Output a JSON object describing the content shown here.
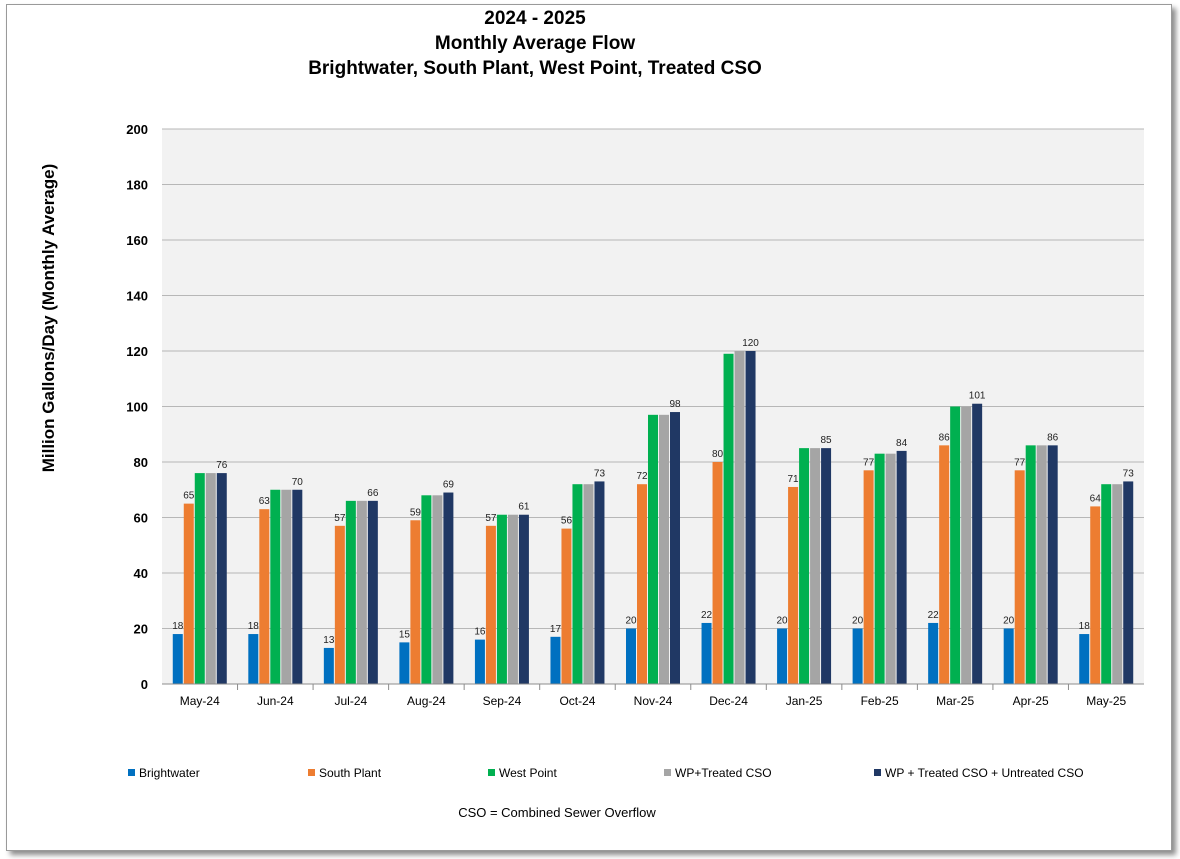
{
  "title": {
    "line1": "2024 - 2025",
    "line2": "Monthly Average Flow",
    "line3": "Brightwater, South Plant, West Point, Treated CSO"
  },
  "chart_data": {
    "type": "bar",
    "ylabel": "Million Gallons/Day (Monthly Average)",
    "xlabel": "",
    "ylim": [
      0,
      200
    ],
    "yticks": [
      0,
      20,
      40,
      60,
      80,
      100,
      120,
      140,
      160,
      180,
      200
    ],
    "grid": true,
    "legend_position": "bottom",
    "plot_background": "#f2f2f2",
    "categories": [
      "May-24",
      "Jun-24",
      "Jul-24",
      "Aug-24",
      "Sep-24",
      "Oct-24",
      "Nov-24",
      "Dec-24",
      "Jan-25",
      "Feb-25",
      "Mar-25",
      "Apr-25",
      "May-25"
    ],
    "series": [
      {
        "name": "Brightwater",
        "color": "#0070c0",
        "labeled": true,
        "values": [
          18,
          18,
          13,
          15,
          16,
          17,
          20,
          22,
          20,
          20,
          22,
          20,
          18
        ]
      },
      {
        "name": "South Plant",
        "color": "#ed7d31",
        "labeled": true,
        "values": [
          65,
          63,
          57,
          59,
          57,
          56,
          72,
          80,
          71,
          77,
          86,
          77,
          64
        ]
      },
      {
        "name": "West Point",
        "color": "#00b050",
        "labeled": false,
        "values": [
          76,
          70,
          66,
          68,
          61,
          72,
          97,
          119,
          85,
          83,
          100,
          86,
          72
        ]
      },
      {
        "name": "WP+Treated CSO",
        "color": "#a5a5a5",
        "labeled": false,
        "values": [
          76,
          70,
          66,
          68,
          61,
          72,
          97,
          120,
          85,
          83,
          100,
          86,
          72
        ]
      },
      {
        "name": "WP + Treated CSO + Untreated CSO",
        "color": "#203864",
        "labeled": true,
        "values": [
          76,
          70,
          66,
          69,
          61,
          73,
          98,
          120,
          85,
          84,
          101,
          86,
          73
        ]
      }
    ],
    "annotation": "CSO = Combined Sewer Overflow"
  }
}
